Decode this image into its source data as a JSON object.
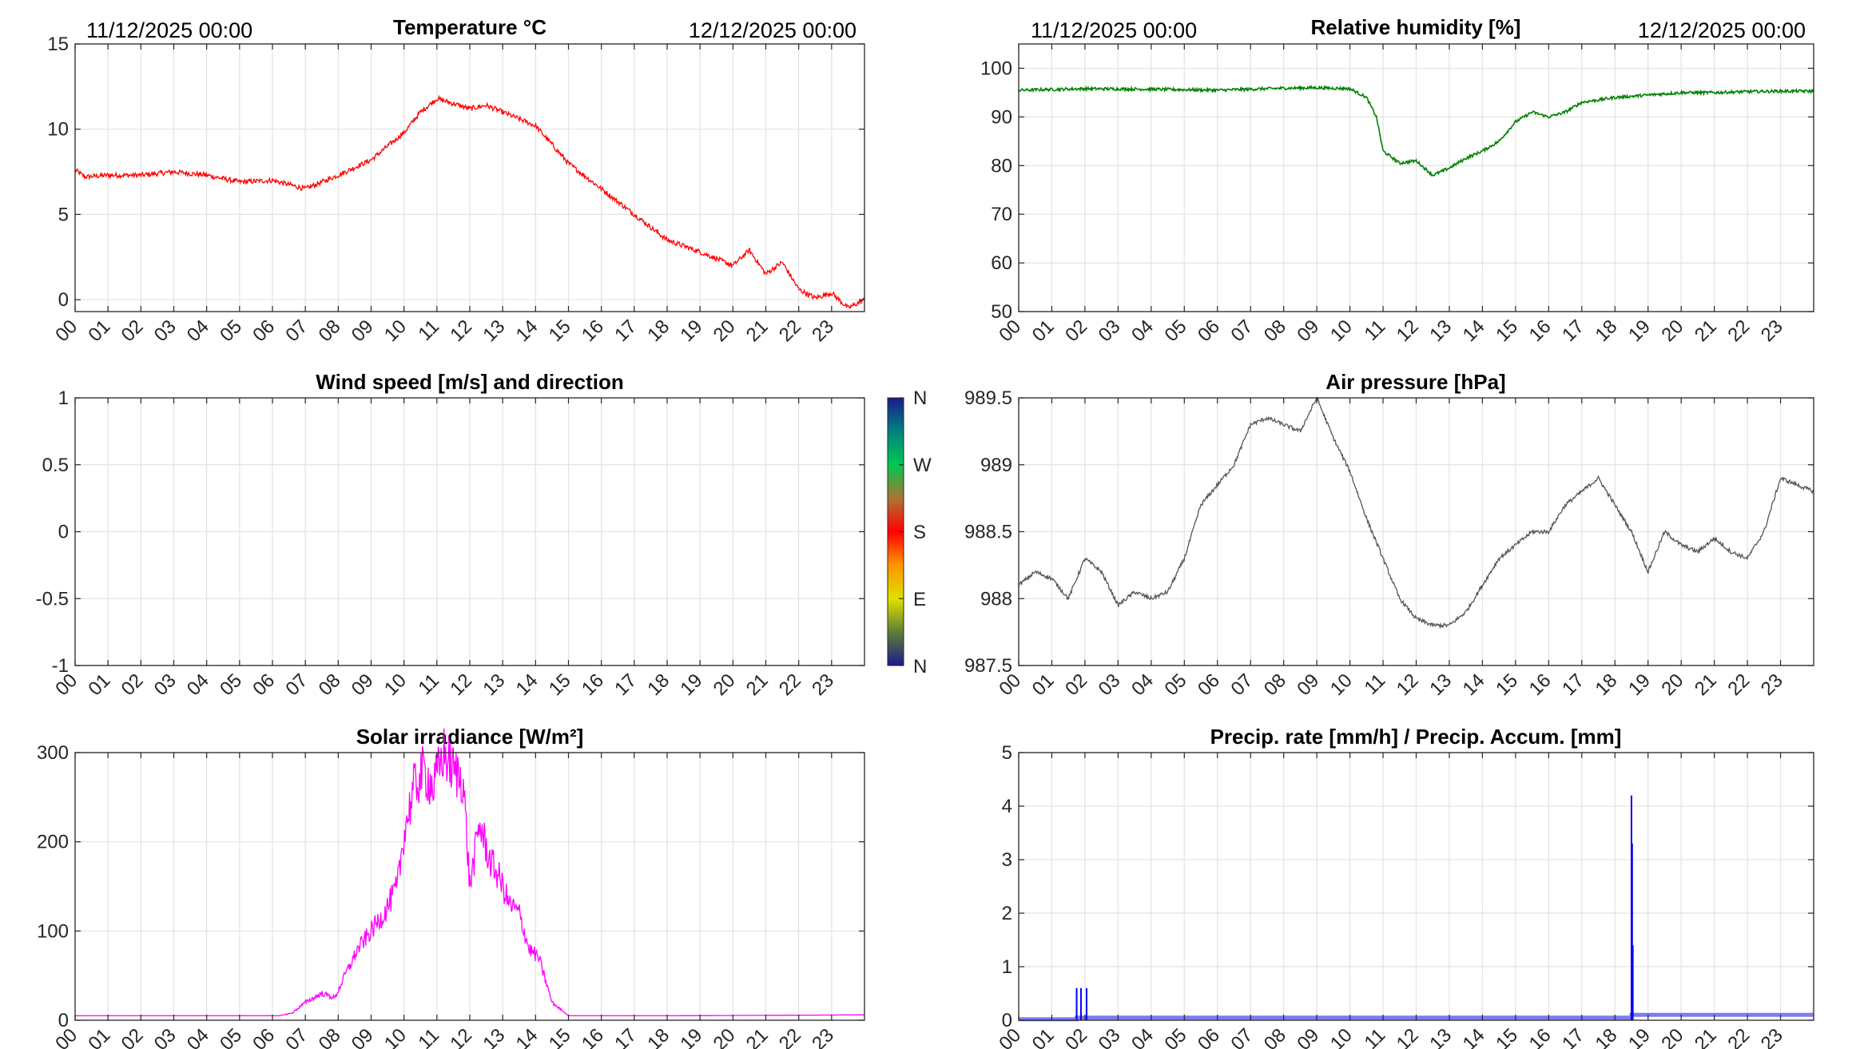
{
  "chart_data": [
    {
      "id": "temperature",
      "type": "line",
      "title": "Temperature °C",
      "date_start": "11/12/2025 00:00",
      "date_end": "12/12/2025 00:00",
      "xlim": [
        0,
        24
      ],
      "x_ticks": [
        "00",
        "01",
        "02",
        "03",
        "04",
        "05",
        "06",
        "07",
        "08",
        "09",
        "10",
        "11",
        "12",
        "13",
        "14",
        "15",
        "16",
        "17",
        "18",
        "19",
        "20",
        "21",
        "22",
        "23"
      ],
      "ylim": [
        -0.7,
        15
      ],
      "y_ticks": [
        0,
        5,
        10,
        15
      ],
      "color": "#ff0000",
      "noise": 0.15,
      "series": [
        {
          "x": [
            0,
            0.3,
            1,
            2,
            3,
            4,
            5,
            6,
            7,
            8,
            9,
            10,
            10.5,
            11,
            11.5,
            12,
            12.5,
            13,
            14,
            15,
            16,
            17,
            18,
            19,
            20,
            20.5,
            21,
            21.5,
            22,
            22.5,
            23,
            23.5,
            24
          ],
          "y": [
            7.6,
            7.2,
            7.3,
            7.3,
            7.5,
            7.3,
            6.9,
            7.0,
            6.5,
            7.3,
            8.2,
            9.8,
            11.0,
            11.8,
            11.5,
            11.2,
            11.4,
            11.0,
            10.2,
            8.0,
            6.5,
            5.0,
            3.5,
            2.8,
            2.0,
            2.9,
            1.5,
            2.2,
            0.6,
            0.1,
            0.4,
            -0.5,
            0.0
          ]
        }
      ]
    },
    {
      "id": "humidity",
      "type": "line",
      "title": "Relative humidity [%]",
      "date_start": "11/12/2025 00:00",
      "date_end": "12/12/2025 00:00",
      "xlim": [
        0,
        24
      ],
      "x_ticks": [
        "00",
        "01",
        "02",
        "03",
        "04",
        "05",
        "06",
        "07",
        "08",
        "09",
        "10",
        "11",
        "12",
        "13",
        "14",
        "15",
        "16",
        "17",
        "18",
        "19",
        "20",
        "21",
        "22",
        "23"
      ],
      "ylim": [
        50,
        105
      ],
      "y_ticks": [
        50,
        60,
        70,
        80,
        90,
        100
      ],
      "color": "#008000",
      "noise": 0.3,
      "series": [
        {
          "x": [
            0,
            2,
            4,
            6,
            8,
            9,
            10,
            10.5,
            10.8,
            11,
            11.5,
            12,
            12.5,
            13,
            13.5,
            14,
            14.5,
            15,
            15.5,
            16,
            16.5,
            17,
            18,
            19,
            20,
            21,
            22,
            23,
            24
          ],
          "y": [
            95.5,
            95.8,
            95.7,
            95.5,
            95.9,
            96.0,
            95.8,
            94.0,
            90.0,
            83.0,
            80.5,
            81.0,
            78.0,
            79.5,
            81.5,
            83.0,
            85.0,
            89.0,
            91.0,
            90.0,
            91.0,
            93.0,
            94.0,
            94.5,
            95.0,
            95.0,
            95.2,
            95.3,
            95.3
          ]
        }
      ]
    },
    {
      "id": "wind",
      "type": "scatter",
      "title": "Wind speed [m/s] and direction",
      "xlim": [
        0,
        24
      ],
      "x_ticks": [
        "00",
        "01",
        "02",
        "03",
        "04",
        "05",
        "06",
        "07",
        "08",
        "09",
        "10",
        "11",
        "12",
        "13",
        "14",
        "15",
        "16",
        "17",
        "18",
        "19",
        "20",
        "21",
        "22",
        "23"
      ],
      "ylim": [
        -1,
        1
      ],
      "y_ticks": [
        -1,
        -0.5,
        0,
        0.5,
        1
      ],
      "y_tick_labels": [
        "-1",
        "-0.5",
        "0",
        "0.5",
        "1"
      ],
      "series": [],
      "colorbar": {
        "labels_bottom_to_top": [
          "N",
          "E",
          "S",
          "W",
          "N"
        ],
        "colors_bottom_to_top": [
          "#1a1a8c",
          "#c8c800",
          "#ff0000",
          "#00c850",
          "#1a1a8c"
        ]
      }
    },
    {
      "id": "pressure",
      "type": "line",
      "title": "Air pressure [hPa]",
      "xlim": [
        0,
        24
      ],
      "x_ticks": [
        "00",
        "01",
        "02",
        "03",
        "04",
        "05",
        "06",
        "07",
        "08",
        "09",
        "10",
        "11",
        "12",
        "13",
        "14",
        "15",
        "16",
        "17",
        "18",
        "19",
        "20",
        "21",
        "22",
        "23"
      ],
      "ylim": [
        987.5,
        989.5
      ],
      "y_ticks": [
        987.5,
        988,
        988.5,
        989,
        989.5
      ],
      "color": "#555555",
      "noise": 0.015,
      "series": [
        {
          "x": [
            0,
            0.5,
            1,
            1.5,
            2,
            2.5,
            3,
            3.5,
            4,
            4.5,
            5,
            5.5,
            6,
            6.5,
            7,
            7.5,
            8,
            8.5,
            9,
            9.5,
            10,
            10.5,
            11,
            11.5,
            12,
            12.5,
            13,
            13.5,
            14,
            14.5,
            15,
            15.5,
            16,
            16.5,
            17,
            17.5,
            18,
            18.5,
            19,
            19.5,
            20,
            20.5,
            21,
            21.5,
            22,
            22.5,
            23,
            23.5,
            24
          ],
          "y": [
            988.1,
            988.2,
            988.15,
            988.0,
            988.3,
            988.2,
            987.95,
            988.05,
            988.0,
            988.05,
            988.3,
            988.7,
            988.85,
            989.0,
            989.3,
            989.35,
            989.3,
            989.25,
            989.5,
            989.2,
            988.95,
            988.6,
            988.3,
            988.0,
            987.85,
            987.8,
            987.8,
            987.9,
            988.1,
            988.3,
            988.4,
            988.5,
            988.5,
            988.7,
            988.8,
            988.9,
            988.7,
            988.5,
            988.2,
            988.5,
            988.4,
            988.35,
            988.45,
            988.35,
            988.3,
            988.5,
            988.9,
            988.85,
            988.8
          ]
        }
      ]
    },
    {
      "id": "solar",
      "type": "line",
      "title": "Solar irradiance [W/m²]",
      "xlim": [
        0,
        24
      ],
      "x_ticks": [
        "00",
        "01",
        "02",
        "03",
        "04",
        "05",
        "06",
        "07",
        "08",
        "09",
        "10",
        "11",
        "12",
        "13",
        "14",
        "15",
        "16",
        "17",
        "18",
        "19",
        "20",
        "21",
        "22",
        "23"
      ],
      "ylim": [
        0,
        300
      ],
      "y_ticks": [
        0,
        100,
        200,
        300
      ],
      "color": "#ff00ff",
      "noise": 0,
      "series": [
        {
          "x": [
            0,
            6.2,
            6.6,
            7.0,
            7.5,
            7.9,
            8.2,
            8.6,
            9.0,
            9.4,
            9.8,
            10.0,
            10.3,
            10.6,
            10.9,
            11.2,
            11.5,
            11.8,
            12.0,
            12.3,
            12.6,
            12.9,
            13.2,
            13.5,
            13.8,
            14.1,
            14.5,
            15.0,
            18,
            24
          ],
          "y": [
            5,
            5,
            8,
            20,
            30,
            25,
            50,
            80,
            100,
            120,
            150,
            210,
            260,
            280,
            260,
            300,
            280,
            270,
            150,
            220,
            180,
            160,
            130,
            120,
            80,
            70,
            20,
            5,
            5,
            6
          ]
        }
      ]
    },
    {
      "id": "precip",
      "type": "bar",
      "title": "Precip. rate [mm/h] / Precip. Accum. [mm]",
      "xlim": [
        0,
        24
      ],
      "x_ticks": [
        "00",
        "01",
        "02",
        "03",
        "04",
        "05",
        "06",
        "07",
        "08",
        "09",
        "10",
        "11",
        "12",
        "13",
        "14",
        "15",
        "16",
        "17",
        "18",
        "19",
        "20",
        "21",
        "22",
        "23"
      ],
      "ylim": [
        0,
        5
      ],
      "y_ticks": [
        0,
        1,
        2,
        3,
        4,
        5
      ],
      "rate_color": "#0000ff",
      "accum_color": "#7b7bf2",
      "rate": {
        "x": [
          1.75,
          1.88,
          2.05,
          18.5,
          18.52,
          18.54
        ],
        "y": [
          0.6,
          0.6,
          0.6,
          4.2,
          3.3,
          1.4
        ]
      },
      "accum": {
        "x": [
          0,
          1.75,
          1.75,
          18.5,
          18.5,
          24
        ],
        "y": [
          0.02,
          0.02,
          0.05,
          0.05,
          0.1,
          0.1
        ]
      }
    }
  ]
}
